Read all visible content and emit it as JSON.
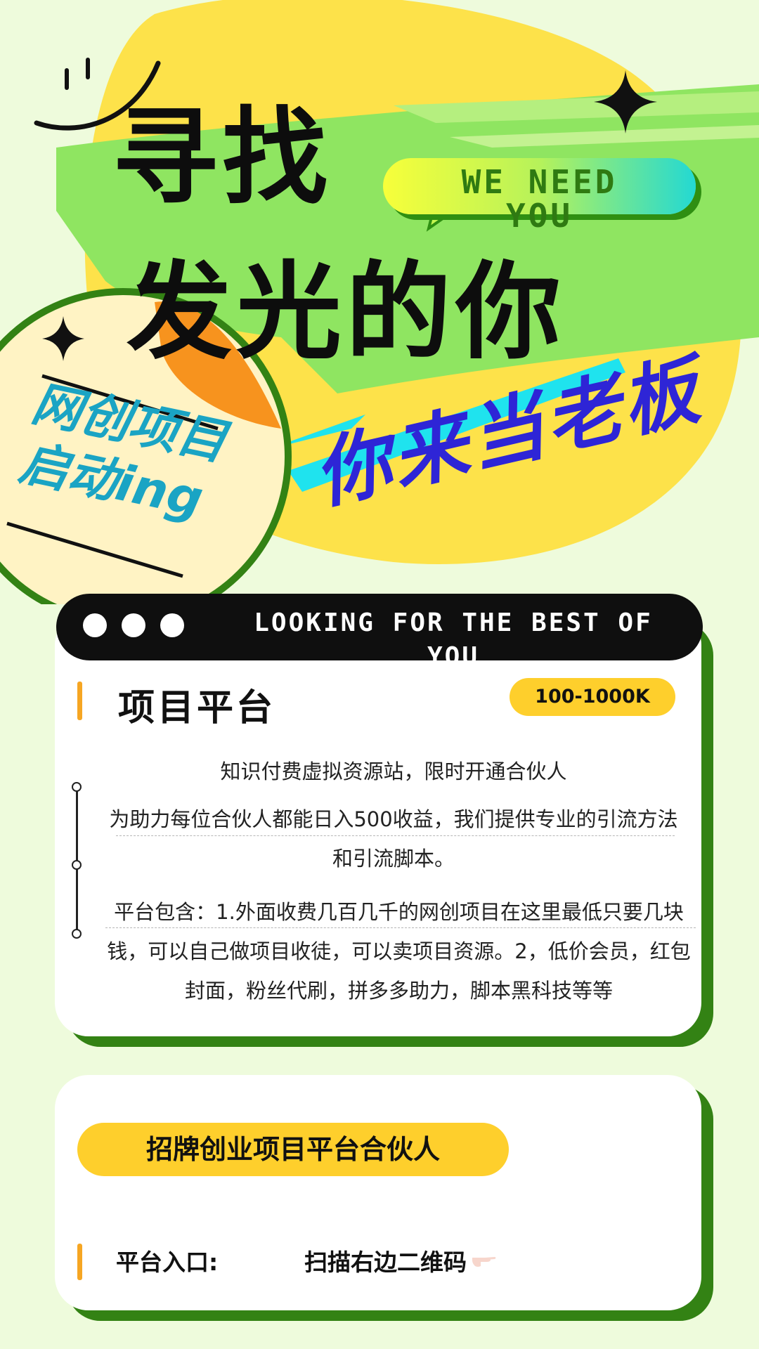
{
  "hero": {
    "headline_line1": "寻找",
    "headline_line2": "发光的你",
    "tag": "WE NEED YOU",
    "slogan": "你来当老板",
    "badge_line1": "网创项目",
    "badge_line2": "启动ing"
  },
  "banner": {
    "text": "LOOKING FOR THE BEST OF YOU"
  },
  "platform_card": {
    "title": "项目平台",
    "salary": "100-1000K",
    "paragraph1": "知识付费虚拟资源站，限时开通合伙人",
    "paragraph2": "为助力每位合伙人都能日入500收益，我们提供专业的引流方法和引流脚本。",
    "paragraph3": "平台包含：1.外面收费几百几千的网创项目在这里最低只要几块钱，可以自己做项目收徒，可以卖项目资源。2，低价会员，红包封面，粉丝代刷，拼多多助力，脚本黑科技等等"
  },
  "partner_card": {
    "heading": "招牌创业项目平台合伙人",
    "entry_label": "平台入口:",
    "entry_value": "扫描右边二维码"
  },
  "icons": [
    "smiley-icon",
    "sparkle-icon",
    "hand-pointing-icon"
  ],
  "colors": {
    "background": "#eefbdc",
    "yellow": "#fecf2c",
    "green": "#338214",
    "lime": "#8fe561",
    "blue": "#2e25d6",
    "cyan": "#1aa4c4"
  }
}
